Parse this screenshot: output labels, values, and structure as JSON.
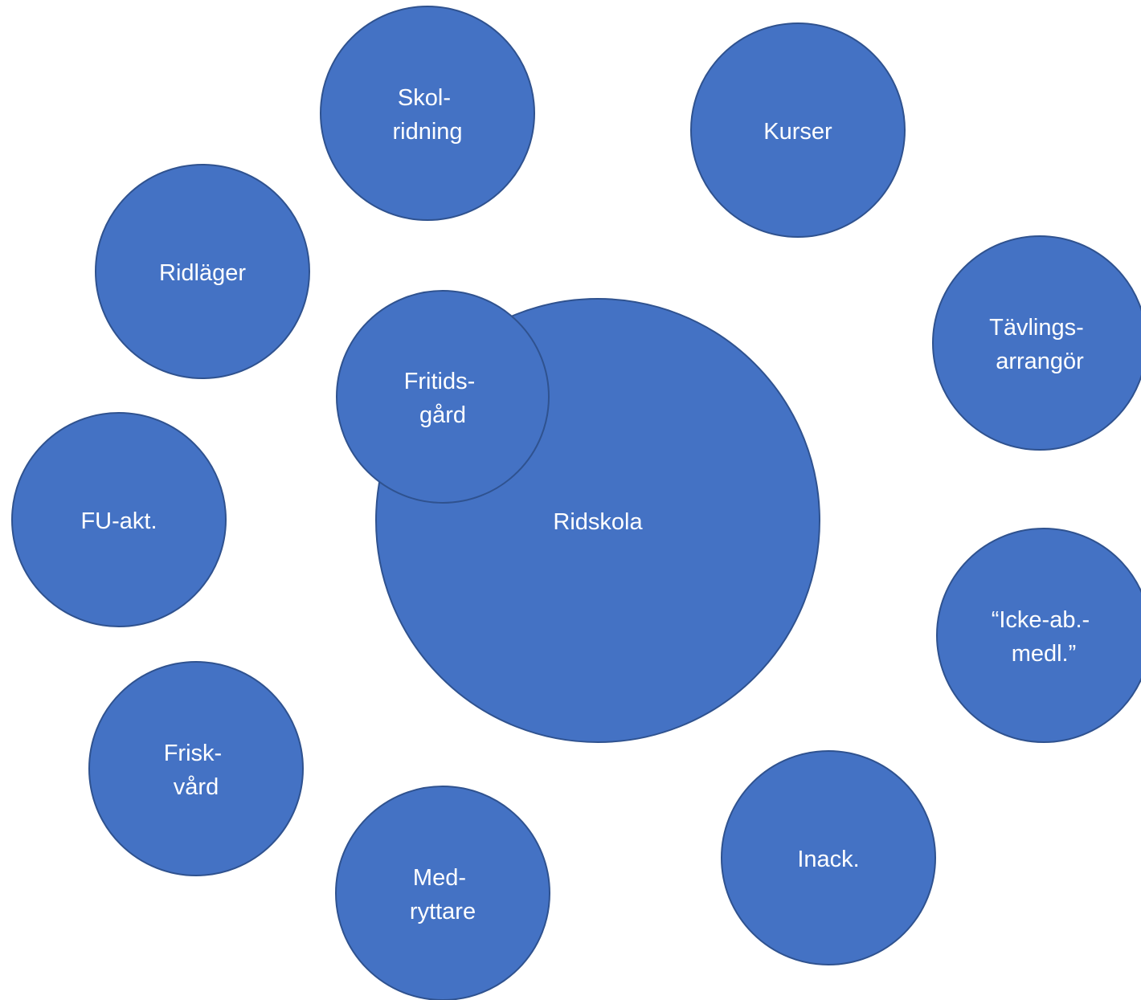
{
  "colors": {
    "fill": "#4472C4",
    "stroke": "#2F528F",
    "text": "#FFFFFF"
  },
  "nodes": [
    {
      "id": "ridskola",
      "lines": [
        "Ridskola"
      ]
    },
    {
      "id": "fritidsgard",
      "lines": [
        "Fritids-",
        "gård"
      ]
    },
    {
      "id": "skolridning",
      "lines": [
        "Skol-",
        "ridning"
      ]
    },
    {
      "id": "kurser",
      "lines": [
        "Kurser"
      ]
    },
    {
      "id": "ridlager",
      "lines": [
        "Ridläger"
      ]
    },
    {
      "id": "tavlingsarrangor",
      "lines": [
        "Tävlings-",
        "arrangör"
      ]
    },
    {
      "id": "fu-akt",
      "lines": [
        "FU-akt."
      ]
    },
    {
      "id": "icke-ab-medl",
      "lines": [
        "“Icke-ab.-",
        "medl.”"
      ]
    },
    {
      "id": "friskvard",
      "lines": [
        "Frisk-",
        "vård"
      ]
    },
    {
      "id": "medryttare",
      "lines": [
        "Med-",
        "ryttare"
      ]
    },
    {
      "id": "inack",
      "lines": [
        "Inack."
      ]
    }
  ]
}
